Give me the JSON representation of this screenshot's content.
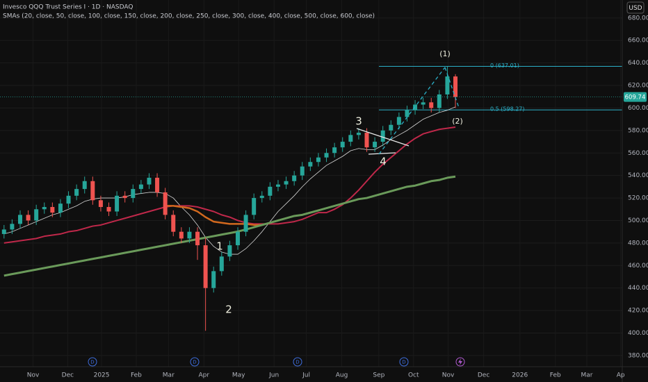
{
  "chart_data": {
    "type": "candlestick",
    "title": "Invesco QQQ Trust Series I · 1D · NASDAQ",
    "subtitle": "SMAs (20, close, 50, close, 100, close, 150, close, 200, close, 250, close, 300, close, 400, close, 500, close, 600, close)",
    "currency": "USD",
    "x": [
      0,
      1,
      2,
      3,
      4,
      5,
      6,
      7,
      8,
      9,
      10,
      11,
      12,
      13,
      14,
      15,
      16,
      17,
      18,
      19,
      20,
      21,
      22,
      23,
      24,
      25,
      26,
      27,
      28,
      29,
      30,
      31,
      32,
      33,
      34,
      35,
      36,
      37,
      38,
      39,
      40,
      41,
      42,
      43,
      44,
      45,
      46,
      47,
      48,
      49,
      50,
      51,
      52,
      53,
      54,
      55,
      56
    ],
    "open": [
      488,
      492,
      497,
      505,
      500,
      510,
      512,
      507,
      515,
      522,
      528,
      535,
      518,
      512,
      508,
      522,
      520,
      528,
      532,
      538,
      525,
      505,
      490,
      484,
      490,
      478,
      440,
      455,
      468,
      478,
      490,
      505,
      520,
      522,
      530,
      532,
      535,
      540,
      548,
      552,
      556,
      560,
      565,
      570,
      576,
      578,
      565,
      570,
      580,
      585,
      592,
      598,
      603,
      605,
      600,
      612,
      628
    ],
    "high": [
      496,
      501,
      509,
      509,
      514,
      516,
      516,
      519,
      526,
      532,
      539,
      539,
      522,
      516,
      526,
      526,
      532,
      536,
      542,
      542,
      529,
      509,
      494,
      494,
      494,
      485,
      459,
      472,
      482,
      494,
      509,
      524,
      526,
      534,
      536,
      539,
      544,
      552,
      556,
      560,
      564,
      569,
      574,
      580,
      582,
      582,
      574,
      584,
      589,
      596,
      602,
      607,
      609,
      609,
      616,
      637.01,
      630
    ],
    "low": [
      484,
      488,
      493,
      496,
      496,
      506,
      503,
      503,
      511,
      518,
      524,
      514,
      508,
      504,
      504,
      516,
      516,
      524,
      528,
      521,
      501,
      486,
      480,
      480,
      465,
      402,
      436,
      451,
      464,
      474,
      486,
      501,
      516,
      518,
      526,
      528,
      531,
      536,
      544,
      548,
      552,
      556,
      561,
      566,
      572,
      561,
      561,
      566,
      576,
      581,
      588,
      594,
      599,
      596,
      596,
      608,
      600
    ],
    "close": [
      492,
      497,
      505,
      500,
      510,
      512,
      507,
      515,
      522,
      528,
      535,
      518,
      512,
      508,
      522,
      520,
      528,
      532,
      538,
      525,
      505,
      490,
      484,
      490,
      478,
      440,
      455,
      468,
      478,
      490,
      505,
      520,
      522,
      530,
      532,
      535,
      540,
      548,
      552,
      556,
      560,
      565,
      570,
      576,
      578,
      565,
      570,
      580,
      585,
      592,
      598,
      603,
      605,
      600,
      612,
      628,
      609.74
    ],
    "up_color": "#26a69a",
    "down_color": "#ef5350",
    "series": [
      {
        "color": "#d8d8d8",
        "width": 0.8,
        "values": [
          488,
          490,
          493,
          496,
          499,
          502,
          505,
          507,
          510,
          513,
          517,
          519,
          520,
          520,
          520,
          521,
          523,
          524,
          525,
          525,
          524,
          520,
          512,
          505,
          496,
          485,
          477,
          472,
          470,
          470,
          475,
          482,
          490,
          499,
          508,
          515,
          522,
          530,
          537,
          543,
          549,
          553,
          557,
          562,
          564,
          563,
          563,
          567,
          572,
          576,
          580,
          585,
          590,
          593,
          596,
          598,
          601
        ]
      },
      {
        "color": "#c0284a",
        "width": 2,
        "values": [
          480,
          481,
          482,
          483,
          484,
          486,
          487,
          488,
          490,
          491,
          493,
          495,
          496,
          498,
          500,
          502,
          504,
          506,
          508,
          510,
          512,
          513,
          513,
          513,
          512,
          510,
          508,
          505,
          503,
          500,
          498,
          497,
          497,
          497,
          497,
          498,
          499,
          501,
          504,
          507,
          507,
          510,
          514,
          520,
          527,
          535,
          543,
          550,
          556,
          562,
          568,
          573,
          577,
          579,
          581,
          582,
          583
        ]
      },
      {
        "color": "#d2691e",
        "width": 2.5,
        "values": [
          null,
          null,
          null,
          null,
          null,
          null,
          null,
          null,
          null,
          null,
          null,
          null,
          null,
          null,
          null,
          null,
          null,
          null,
          null,
          null,
          513,
          513,
          512,
          511,
          508,
          503,
          499,
          498,
          497,
          497,
          497,
          496,
          496,
          null,
          null,
          null,
          null,
          null,
          null,
          null,
          null,
          null,
          null,
          null,
          null,
          null,
          null,
          null,
          null,
          null,
          null,
          null,
          null,
          null,
          null,
          null,
          null
        ]
      },
      {
        "color": "#6a9a5a",
        "width": 3,
        "values": [
          451,
          452.4,
          453.7,
          455.1,
          456.4,
          457.8,
          459.1,
          460.5,
          461.8,
          463.2,
          464.5,
          465.9,
          467.2,
          468.6,
          469.9,
          471.3,
          472.6,
          474,
          475.3,
          476.7,
          478,
          479.4,
          480.7,
          482.1,
          483.4,
          484.8,
          486.1,
          487.5,
          488.8,
          490.2,
          492,
          494,
          496,
          498,
          500,
          502,
          504,
          505,
          507,
          509,
          511,
          513,
          515,
          517,
          519,
          520,
          522,
          524,
          526,
          528,
          530,
          531,
          533,
          535,
          536,
          538,
          539
        ]
      }
    ],
    "xlim": [
      -0.5,
      76.7
    ],
    "xticks": [
      {
        "value": 3.6,
        "label": "Nov"
      },
      {
        "value": 7.9,
        "label": "Dec"
      },
      {
        "value": 12.1,
        "label": "2025"
      },
      {
        "value": 16.4,
        "label": "Feb"
      },
      {
        "value": 20.4,
        "label": "Mar"
      },
      {
        "value": 24.8,
        "label": "Apr"
      },
      {
        "value": 29.1,
        "label": "May"
      },
      {
        "value": 33.5,
        "label": "Jun"
      },
      {
        "value": 37.5,
        "label": "Jul"
      },
      {
        "value": 41.9,
        "label": "Aug"
      },
      {
        "value": 46.5,
        "label": "Sep"
      },
      {
        "value": 50.8,
        "label": "Oct"
      },
      {
        "value": 55.1,
        "label": "Nov"
      },
      {
        "value": 59.5,
        "label": "Dec"
      },
      {
        "value": 64.0,
        "label": "2026"
      },
      {
        "value": 68.4,
        "label": "Feb"
      },
      {
        "value": 72.3,
        "label": "Mar"
      },
      {
        "value": 76.5,
        "label": "Ap"
      }
    ],
    "ylim": [
      375,
      691
    ],
    "yticks": [
      {
        "value": 380,
        "label": "380.00"
      },
      {
        "value": 400,
        "label": "400.00"
      },
      {
        "value": 420,
        "label": "420.00"
      },
      {
        "value": 440,
        "label": "440.00"
      },
      {
        "value": 460,
        "label": "460.00"
      },
      {
        "value": 480,
        "label": "480.00"
      },
      {
        "value": 500,
        "label": "500.00"
      },
      {
        "value": 520,
        "label": "520.00"
      },
      {
        "value": 540,
        "label": "540.00"
      },
      {
        "value": 560,
        "label": "560.00"
      },
      {
        "value": 580,
        "label": "580.00"
      },
      {
        "value": 600,
        "label": "600.00"
      },
      {
        "value": 620,
        "label": "620.00"
      },
      {
        "value": 640,
        "label": "640.00"
      },
      {
        "value": 660,
        "label": "660.00"
      },
      {
        "value": 680,
        "label": "680.00"
      }
    ],
    "grid": true,
    "fib_levels": [
      {
        "value": 637.01,
        "label": "0 (637.01)"
      },
      {
        "value": 598.27,
        "label": "0.5 (598.27)"
      }
    ],
    "annotations": [
      "(1)",
      "(2)",
      "1",
      "2",
      "3",
      "4"
    ],
    "event_markers": [
      "D",
      "D",
      "D",
      "D"
    ]
  }
}
